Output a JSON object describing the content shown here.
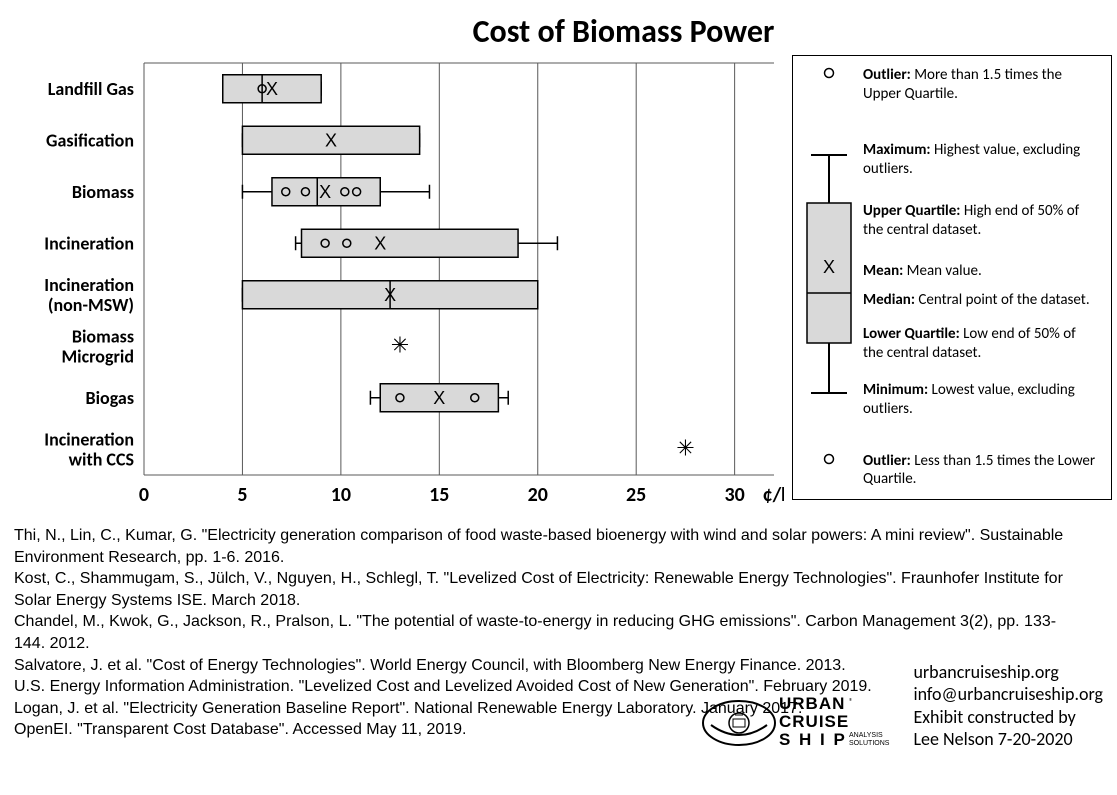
{
  "title": "Cost of Biomass Power",
  "chart": {
    "type": "boxplot",
    "xlim": [
      0,
      32
    ],
    "xticks": [
      0,
      5,
      10,
      15,
      20,
      25,
      30
    ],
    "x_unit": "¢/kWh",
    "grid_color": "#595959",
    "box_fill": "#d9d9d9",
    "box_stroke": "#000000",
    "background": "#ffffff",
    "title_fontsize": 32,
    "label_fontsize": 18,
    "tick_fontsize": 20,
    "categories": [
      {
        "label": "Landfill Gas",
        "q1": 4.0,
        "median": 6.0,
        "q3": 9.0,
        "min": 4.0,
        "max": 9.0,
        "mean": 6.5,
        "outliers": [
          6.0
        ]
      },
      {
        "label": "Gasification",
        "q1": 5.0,
        "median": null,
        "q3": 14.0,
        "min": 5.0,
        "max": 14.0,
        "mean": 9.5,
        "outliers": []
      },
      {
        "label": "Biomass",
        "q1": 6.5,
        "median": 8.8,
        "q3": 12.0,
        "min": 5.0,
        "max": 14.5,
        "mean": 9.2,
        "outliers": [
          7.2,
          8.2,
          10.2,
          10.8
        ]
      },
      {
        "label": "Incineration",
        "q1": 8.0,
        "median": null,
        "q3": 19.0,
        "min": 7.7,
        "max": 21.0,
        "mean": 12.0,
        "outliers": [
          9.2,
          10.3
        ]
      },
      {
        "label": "Incineration\n(non-MSW)",
        "q1": 5.0,
        "median": 12.5,
        "q3": 20.0,
        "min": 5.0,
        "max": 20.0,
        "mean": 12.5,
        "outliers": []
      },
      {
        "label": "Biomass\nMicrogrid",
        "q1": null,
        "median": null,
        "q3": null,
        "min": 13.0,
        "max": 13.0,
        "mean": 13.0,
        "outliers": [],
        "single": true
      },
      {
        "label": "Biogas",
        "q1": 12.0,
        "median": null,
        "q3": 18.0,
        "min": 11.5,
        "max": 18.5,
        "mean": 15.0,
        "outliers": [
          13.0,
          16.8
        ]
      },
      {
        "label": "Incineration\nwith CCS",
        "q1": null,
        "median": null,
        "q3": null,
        "min": 27.5,
        "max": 27.5,
        "mean": 27.5,
        "outliers": [],
        "single": true
      }
    ]
  },
  "legend": {
    "outlier_hi": {
      "label": "Outlier:",
      "desc": "More than 1.5 times the Upper Quartile."
    },
    "maximum": {
      "label": "Maximum:",
      "desc": "Highest value, excluding outliers."
    },
    "upper_q": {
      "label": "Upper Quartile:",
      "desc": "High end of 50% of the central dataset."
    },
    "mean": {
      "label": "Mean:",
      "desc": "Mean value."
    },
    "median": {
      "label": "Median:",
      "desc": "Central point of the dataset."
    },
    "lower_q": {
      "label": "Lower Quartile:",
      "desc": "Low end of 50% of the central dataset."
    },
    "minimum": {
      "label": "Minimum:",
      "desc": "Lowest value, excluding outliers."
    },
    "outlier_lo": {
      "label": "Outlier:",
      "desc": "Less than 1.5 times the Lower Quartile."
    }
  },
  "references": [
    "Thi, N., Lin, C., Kumar, G. \"Electricity generation comparison of food waste-based bioenergy with wind and solar powers: A mini review\". Sustainable Environment Research, pp. 1-6. 2016.",
    "Kost, C., Shammugam, S., Jülch, V., Nguyen, H., Schlegl, T. \"Levelized Cost of Electricity: Renewable Energy Technologies\". Fraunhofer Institute for Solar Energy Systems ISE. March 2018.",
    "Chandel, M., Kwok, G., Jackson, R., Pralson, L. \"The potential of waste-to-energy in reducing GHG emissions\". Carbon Management 3(2), pp. 133-144. 2012.",
    "Salvatore, J. et al. \"Cost of Energy Technologies\". World Energy Council, with Bloomberg New Energy Finance. 2013.",
    "U.S. Energy Information Administration. \"Levelized Cost and Levelized Avoided Cost of New Generation\". February 2019.",
    "Logan, J. et al. \"Electricity Generation Baseline Report\". National Renewable Energy Laboratory. January 2017.",
    "OpenEI. \"Transparent Cost Database\". Accessed May 11, 2019."
  ],
  "footer": {
    "line1": "urbancruiseship.org",
    "line2": "info@urbancruiseship.org",
    "line3": "Exhibit constructed by",
    "line4": "Lee Nelson 7-20-2020",
    "logo_top": "URBAN",
    "logo_mid": "CRUISE",
    "logo_bot": "SHIP",
    "logo_sub1": "ANALYSIS",
    "logo_sub2": "SOLUTIONS"
  }
}
